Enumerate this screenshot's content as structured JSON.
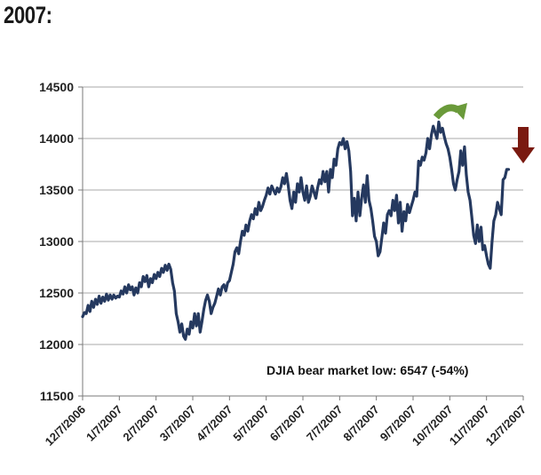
{
  "heading": "2007:",
  "chart_data": {
    "type": "line",
    "title": "",
    "xlabel": "",
    "ylabel": "",
    "ylim": [
      11500,
      14500
    ],
    "yticks": [
      11500,
      12000,
      12500,
      13000,
      13500,
      14000,
      14500
    ],
    "categories": [
      "12/7/2006",
      "1/7/2007",
      "2/7/2007",
      "3/7/2007",
      "4/7/2007",
      "5/7/2007",
      "6/7/2007",
      "7/7/2007",
      "8/7/2007",
      "9/7/2007",
      "10/7/2007",
      "11/7/2007",
      "12/7/2007"
    ],
    "grid": true,
    "legend": "none",
    "series": [
      {
        "name": "DJIA",
        "color": "#25395f",
        "points": [
          [
            0,
            12270
          ],
          [
            0.05,
            12310
          ],
          [
            0.1,
            12300
          ],
          [
            0.15,
            12380
          ],
          [
            0.2,
            12320
          ],
          [
            0.25,
            12420
          ],
          [
            0.3,
            12360
          ],
          [
            0.35,
            12440
          ],
          [
            0.4,
            12390
          ],
          [
            0.45,
            12470
          ],
          [
            0.5,
            12400
          ],
          [
            0.55,
            12460
          ],
          [
            0.6,
            12420
          ],
          [
            0.65,
            12490
          ],
          [
            0.7,
            12430
          ],
          [
            0.75,
            12480
          ],
          [
            0.8,
            12440
          ],
          [
            0.85,
            12480
          ],
          [
            0.9,
            12450
          ],
          [
            0.95,
            12470
          ],
          [
            1.0,
            12460
          ],
          [
            1.05,
            12520
          ],
          [
            1.1,
            12490
          ],
          [
            1.15,
            12560
          ],
          [
            1.2,
            12500
          ],
          [
            1.25,
            12580
          ],
          [
            1.3,
            12530
          ],
          [
            1.35,
            12560
          ],
          [
            1.4,
            12480
          ],
          [
            1.45,
            12550
          ],
          [
            1.5,
            12500
          ],
          [
            1.55,
            12600
          ],
          [
            1.6,
            12560
          ],
          [
            1.65,
            12660
          ],
          [
            1.7,
            12610
          ],
          [
            1.75,
            12670
          ],
          [
            1.8,
            12560
          ],
          [
            1.85,
            12640
          ],
          [
            1.9,
            12600
          ],
          [
            1.95,
            12680
          ],
          [
            2.0,
            12640
          ],
          [
            2.05,
            12700
          ],
          [
            2.1,
            12660
          ],
          [
            2.15,
            12740
          ],
          [
            2.2,
            12700
          ],
          [
            2.25,
            12770
          ],
          [
            2.3,
            12720
          ],
          [
            2.35,
            12780
          ],
          [
            2.4,
            12730
          ],
          [
            2.45,
            12600
          ],
          [
            2.5,
            12520
          ],
          [
            2.55,
            12300
          ],
          [
            2.6,
            12220
          ],
          [
            2.65,
            12120
          ],
          [
            2.7,
            12200
          ],
          [
            2.75,
            12080
          ],
          [
            2.8,
            12050
          ],
          [
            2.85,
            12150
          ],
          [
            2.9,
            12100
          ],
          [
            2.95,
            12220
          ],
          [
            3.0,
            12160
          ],
          [
            3.05,
            12300
          ],
          [
            3.1,
            12180
          ],
          [
            3.15,
            12300
          ],
          [
            3.2,
            12120
          ],
          [
            3.25,
            12220
          ],
          [
            3.3,
            12340
          ],
          [
            3.35,
            12430
          ],
          [
            3.4,
            12480
          ],
          [
            3.45,
            12420
          ],
          [
            3.5,
            12300
          ],
          [
            3.55,
            12360
          ],
          [
            3.6,
            12400
          ],
          [
            3.65,
            12470
          ],
          [
            3.7,
            12540
          ],
          [
            3.75,
            12480
          ],
          [
            3.8,
            12560
          ],
          [
            3.85,
            12580
          ],
          [
            3.9,
            12520
          ],
          [
            3.95,
            12600
          ],
          [
            4.0,
            12620
          ],
          [
            4.05,
            12700
          ],
          [
            4.1,
            12780
          ],
          [
            4.15,
            12900
          ],
          [
            4.2,
            12940
          ],
          [
            4.25,
            12880
          ],
          [
            4.3,
            13000
          ],
          [
            4.35,
            13100
          ],
          [
            4.4,
            13060
          ],
          [
            4.45,
            13160
          ],
          [
            4.5,
            13100
          ],
          [
            4.55,
            13200
          ],
          [
            4.6,
            13260
          ],
          [
            4.65,
            13220
          ],
          [
            4.7,
            13320
          ],
          [
            4.75,
            13260
          ],
          [
            4.8,
            13380
          ],
          [
            4.85,
            13300
          ],
          [
            4.9,
            13340
          ],
          [
            4.95,
            13400
          ],
          [
            5.0,
            13450
          ],
          [
            5.05,
            13520
          ],
          [
            5.1,
            13460
          ],
          [
            5.15,
            13540
          ],
          [
            5.2,
            13500
          ],
          [
            5.25,
            13460
          ],
          [
            5.3,
            13520
          ],
          [
            5.35,
            13480
          ],
          [
            5.4,
            13530
          ],
          [
            5.45,
            13620
          ],
          [
            5.5,
            13560
          ],
          [
            5.55,
            13660
          ],
          [
            5.6,
            13540
          ],
          [
            5.65,
            13400
          ],
          [
            5.7,
            13320
          ],
          [
            5.75,
            13480
          ],
          [
            5.8,
            13380
          ],
          [
            5.85,
            13560
          ],
          [
            5.9,
            13480
          ],
          [
            5.95,
            13620
          ],
          [
            6.0,
            13480
          ],
          [
            6.05,
            13400
          ],
          [
            6.1,
            13540
          ],
          [
            6.15,
            13380
          ],
          [
            6.2,
            13440
          ],
          [
            6.25,
            13540
          ],
          [
            6.3,
            13480
          ],
          [
            6.35,
            13420
          ],
          [
            6.4,
            13520
          ],
          [
            6.45,
            13600
          ],
          [
            6.5,
            13560
          ],
          [
            6.55,
            13680
          ],
          [
            6.6,
            13580
          ],
          [
            6.65,
            13680
          ],
          [
            6.7,
            13480
          ],
          [
            6.75,
            13700
          ],
          [
            6.8,
            13620
          ],
          [
            6.85,
            13800
          ],
          [
            6.9,
            13740
          ],
          [
            6.95,
            13900
          ],
          [
            7.0,
            13960
          ],
          [
            7.05,
            13940
          ],
          [
            7.1,
            14000
          ],
          [
            7.15,
            13900
          ],
          [
            7.2,
            13970
          ],
          [
            7.25,
            13880
          ],
          [
            7.3,
            13680
          ],
          [
            7.35,
            13250
          ],
          [
            7.4,
            13420
          ],
          [
            7.45,
            13200
          ],
          [
            7.5,
            13480
          ],
          [
            7.55,
            13250
          ],
          [
            7.6,
            13420
          ],
          [
            7.65,
            13550
          ],
          [
            7.7,
            13380
          ],
          [
            7.75,
            13640
          ],
          [
            7.8,
            13400
          ],
          [
            7.85,
            13320
          ],
          [
            7.9,
            13200
          ],
          [
            7.95,
            13050
          ],
          [
            8.0,
            13000
          ],
          [
            8.05,
            12860
          ],
          [
            8.1,
            12900
          ],
          [
            8.15,
            13040
          ],
          [
            8.2,
            13180
          ],
          [
            8.25,
            13080
          ],
          [
            8.3,
            13260
          ],
          [
            8.35,
            13300
          ],
          [
            8.4,
            13250
          ],
          [
            8.45,
            13400
          ],
          [
            8.5,
            13300
          ],
          [
            8.55,
            13450
          ],
          [
            8.6,
            13180
          ],
          [
            8.65,
            13380
          ],
          [
            8.7,
            13100
          ],
          [
            8.75,
            13290
          ],
          [
            8.8,
            13200
          ],
          [
            8.85,
            13360
          ],
          [
            8.9,
            13280
          ],
          [
            8.95,
            13340
          ],
          [
            9.0,
            13400
          ],
          [
            9.05,
            13480
          ],
          [
            9.1,
            13440
          ],
          [
            9.15,
            13780
          ],
          [
            9.2,
            13740
          ],
          [
            9.25,
            13820
          ],
          [
            9.3,
            13790
          ],
          [
            9.35,
            13860
          ],
          [
            9.4,
            14000
          ],
          [
            9.45,
            13900
          ],
          [
            9.5,
            14040
          ],
          [
            9.55,
            14120
          ],
          [
            9.6,
            14060
          ],
          [
            9.65,
            14000
          ],
          [
            9.7,
            14160
          ],
          [
            9.75,
            14060
          ],
          [
            9.8,
            14100
          ],
          [
            9.85,
            14020
          ],
          [
            9.9,
            13950
          ],
          [
            9.95,
            13900
          ],
          [
            10.0,
            13820
          ],
          [
            10.05,
            13700
          ],
          [
            10.1,
            13560
          ],
          [
            10.15,
            13500
          ],
          [
            10.2,
            13600
          ],
          [
            10.25,
            13680
          ],
          [
            10.3,
            13880
          ],
          [
            10.35,
            13740
          ],
          [
            10.4,
            13920
          ],
          [
            10.45,
            13650
          ],
          [
            10.5,
            13480
          ],
          [
            10.55,
            13400
          ],
          [
            10.6,
            13240
          ],
          [
            10.65,
            13060
          ],
          [
            10.7,
            12980
          ],
          [
            10.75,
            13160
          ],
          [
            10.8,
            13000
          ],
          [
            10.85,
            13140
          ],
          [
            10.9,
            12920
          ],
          [
            10.95,
            12960
          ],
          [
            11.0,
            12860
          ],
          [
            11.05,
            12780
          ],
          [
            11.1,
            12740
          ],
          [
            11.15,
            13000
          ],
          [
            11.2,
            13200
          ],
          [
            11.25,
            13260
          ],
          [
            11.3,
            13380
          ],
          [
            11.35,
            13320
          ],
          [
            11.4,
            13260
          ],
          [
            11.45,
            13600
          ],
          [
            11.5,
            13620
          ],
          [
            11.55,
            13700
          ],
          [
            11.6,
            13700
          ]
        ]
      }
    ],
    "annotations": [
      {
        "text": "DJIA bear market low: 6547  (-54%)"
      },
      {
        "name": "green-curved-arrow",
        "color": "#6a9a3a"
      },
      {
        "name": "red-down-arrow",
        "color": "#7a1a10"
      }
    ]
  }
}
